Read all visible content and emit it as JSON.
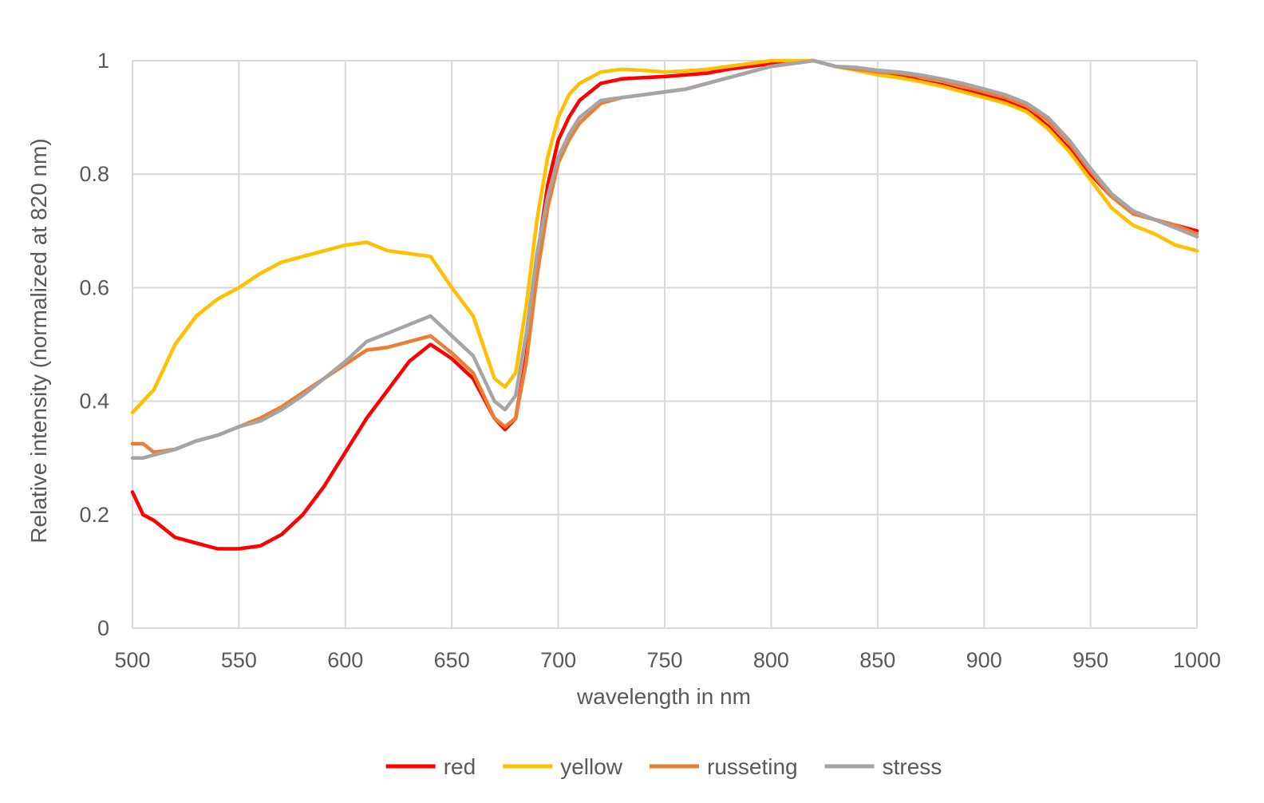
{
  "chart_data": {
    "type": "line",
    "title": "",
    "xlabel": "wavelength in nm",
    "ylabel": "Relative intensity (normalized at 820 nm)",
    "xlim": [
      500,
      1000
    ],
    "ylim": [
      0,
      1
    ],
    "x_ticks": [
      "500",
      "550",
      "600",
      "650",
      "700",
      "750",
      "800",
      "850",
      "900",
      "950",
      "1000"
    ],
    "y_ticks": [
      "0",
      "0.2",
      "0.4",
      "0.6",
      "0.8",
      "1"
    ],
    "grid": true,
    "legend_position": "bottom",
    "x": [
      500,
      505,
      510,
      520,
      530,
      540,
      550,
      560,
      570,
      580,
      590,
      600,
      610,
      620,
      630,
      640,
      650,
      660,
      670,
      675,
      680,
      685,
      690,
      695,
      700,
      705,
      710,
      720,
      730,
      740,
      750,
      760,
      770,
      780,
      790,
      800,
      810,
      820,
      830,
      840,
      850,
      860,
      870,
      880,
      890,
      900,
      910,
      920,
      930,
      940,
      950,
      960,
      970,
      980,
      990,
      1000
    ],
    "series": [
      {
        "name": "red",
        "color": "#ff0000",
        "values": [
          0.24,
          0.2,
          0.19,
          0.16,
          0.15,
          0.14,
          0.14,
          0.145,
          0.165,
          0.2,
          0.25,
          0.31,
          0.37,
          0.42,
          0.47,
          0.5,
          0.475,
          0.44,
          0.37,
          0.35,
          0.37,
          0.48,
          0.65,
          0.78,
          0.86,
          0.9,
          0.93,
          0.96,
          0.968,
          0.97,
          0.972,
          0.975,
          0.978,
          0.985,
          0.99,
          0.995,
          0.998,
          1.0,
          0.99,
          0.985,
          0.98,
          0.975,
          0.965,
          0.958,
          0.948,
          0.94,
          0.93,
          0.915,
          0.885,
          0.845,
          0.8,
          0.76,
          0.735,
          0.72,
          0.71,
          0.7
        ]
      },
      {
        "name": "yellow",
        "color": "#ffc000",
        "values": [
          0.38,
          0.4,
          0.42,
          0.5,
          0.55,
          0.58,
          0.6,
          0.625,
          0.645,
          0.655,
          0.665,
          0.675,
          0.68,
          0.665,
          0.66,
          0.655,
          0.6,
          0.55,
          0.44,
          0.425,
          0.45,
          0.57,
          0.72,
          0.83,
          0.9,
          0.94,
          0.96,
          0.98,
          0.985,
          0.983,
          0.98,
          0.982,
          0.985,
          0.99,
          0.995,
          1.0,
          1.0,
          1.0,
          0.99,
          0.983,
          0.975,
          0.97,
          0.963,
          0.955,
          0.945,
          0.935,
          0.925,
          0.91,
          0.88,
          0.84,
          0.79,
          0.74,
          0.71,
          0.695,
          0.675,
          0.665
        ]
      },
      {
        "name": "russeting",
        "color": "#ed7d31",
        "values": [
          0.325,
          0.325,
          0.31,
          0.315,
          0.33,
          0.34,
          0.355,
          0.37,
          0.39,
          0.415,
          0.44,
          0.465,
          0.49,
          0.495,
          0.505,
          0.515,
          0.485,
          0.45,
          0.37,
          0.355,
          0.37,
          0.47,
          0.62,
          0.74,
          0.82,
          0.86,
          0.89,
          0.925,
          0.935,
          0.94,
          0.945,
          0.95,
          0.96,
          0.97,
          0.98,
          0.99,
          0.995,
          1.0,
          0.99,
          0.985,
          0.98,
          0.978,
          0.972,
          0.965,
          0.955,
          0.945,
          0.935,
          0.92,
          0.895,
          0.855,
          0.805,
          0.76,
          0.73,
          0.72,
          0.71,
          0.695
        ]
      },
      {
        "name": "stress",
        "color": "#a5a5a5",
        "values": [
          0.3,
          0.3,
          0.305,
          0.315,
          0.33,
          0.34,
          0.355,
          0.365,
          0.385,
          0.41,
          0.44,
          0.47,
          0.505,
          0.52,
          0.535,
          0.55,
          0.515,
          0.48,
          0.4,
          0.385,
          0.41,
          0.52,
          0.66,
          0.76,
          0.83,
          0.87,
          0.9,
          0.93,
          0.935,
          0.94,
          0.945,
          0.95,
          0.96,
          0.97,
          0.98,
          0.99,
          0.995,
          1.0,
          0.99,
          0.988,
          0.983,
          0.98,
          0.975,
          0.968,
          0.96,
          0.95,
          0.94,
          0.925,
          0.9,
          0.86,
          0.81,
          0.765,
          0.735,
          0.72,
          0.705,
          0.69
        ]
      }
    ]
  }
}
